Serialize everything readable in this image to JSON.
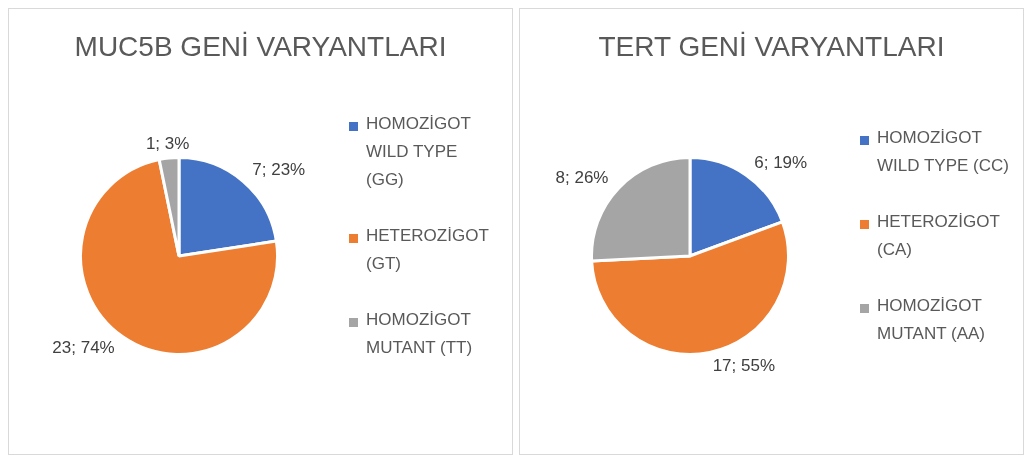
{
  "chart_data": [
    {
      "type": "pie",
      "title": "MUC5B GENİ VARYANTLARI",
      "categories": [
        "HOMOZİGOT WILD TYPE (GG)",
        "HETEROZİGOT (GT)",
        "HOMOZİGOT MUTANT (TT)"
      ],
      "values": [
        7,
        23,
        1
      ],
      "colors": [
        "#4472c4",
        "#ed7d31",
        "#a5a5a5"
      ],
      "value_labels": [
        "7; 23%",
        "23; 74%",
        "1; 3%"
      ],
      "legend": "right"
    },
    {
      "type": "pie",
      "title": "TERT GENİ VARYANTLARI",
      "categories": [
        "HOMOZİGOT WILD TYPE (CC)",
        "HETEROZİGOT (CA)",
        "HOMOZİGOT MUTANT (AA)"
      ],
      "values": [
        6,
        17,
        8
      ],
      "colors": [
        "#4472c4",
        "#ed7d31",
        "#a5a5a5"
      ],
      "value_labels": [
        "6; 19%",
        "17; 55%",
        "8; 26%"
      ],
      "legend": "right"
    }
  ]
}
